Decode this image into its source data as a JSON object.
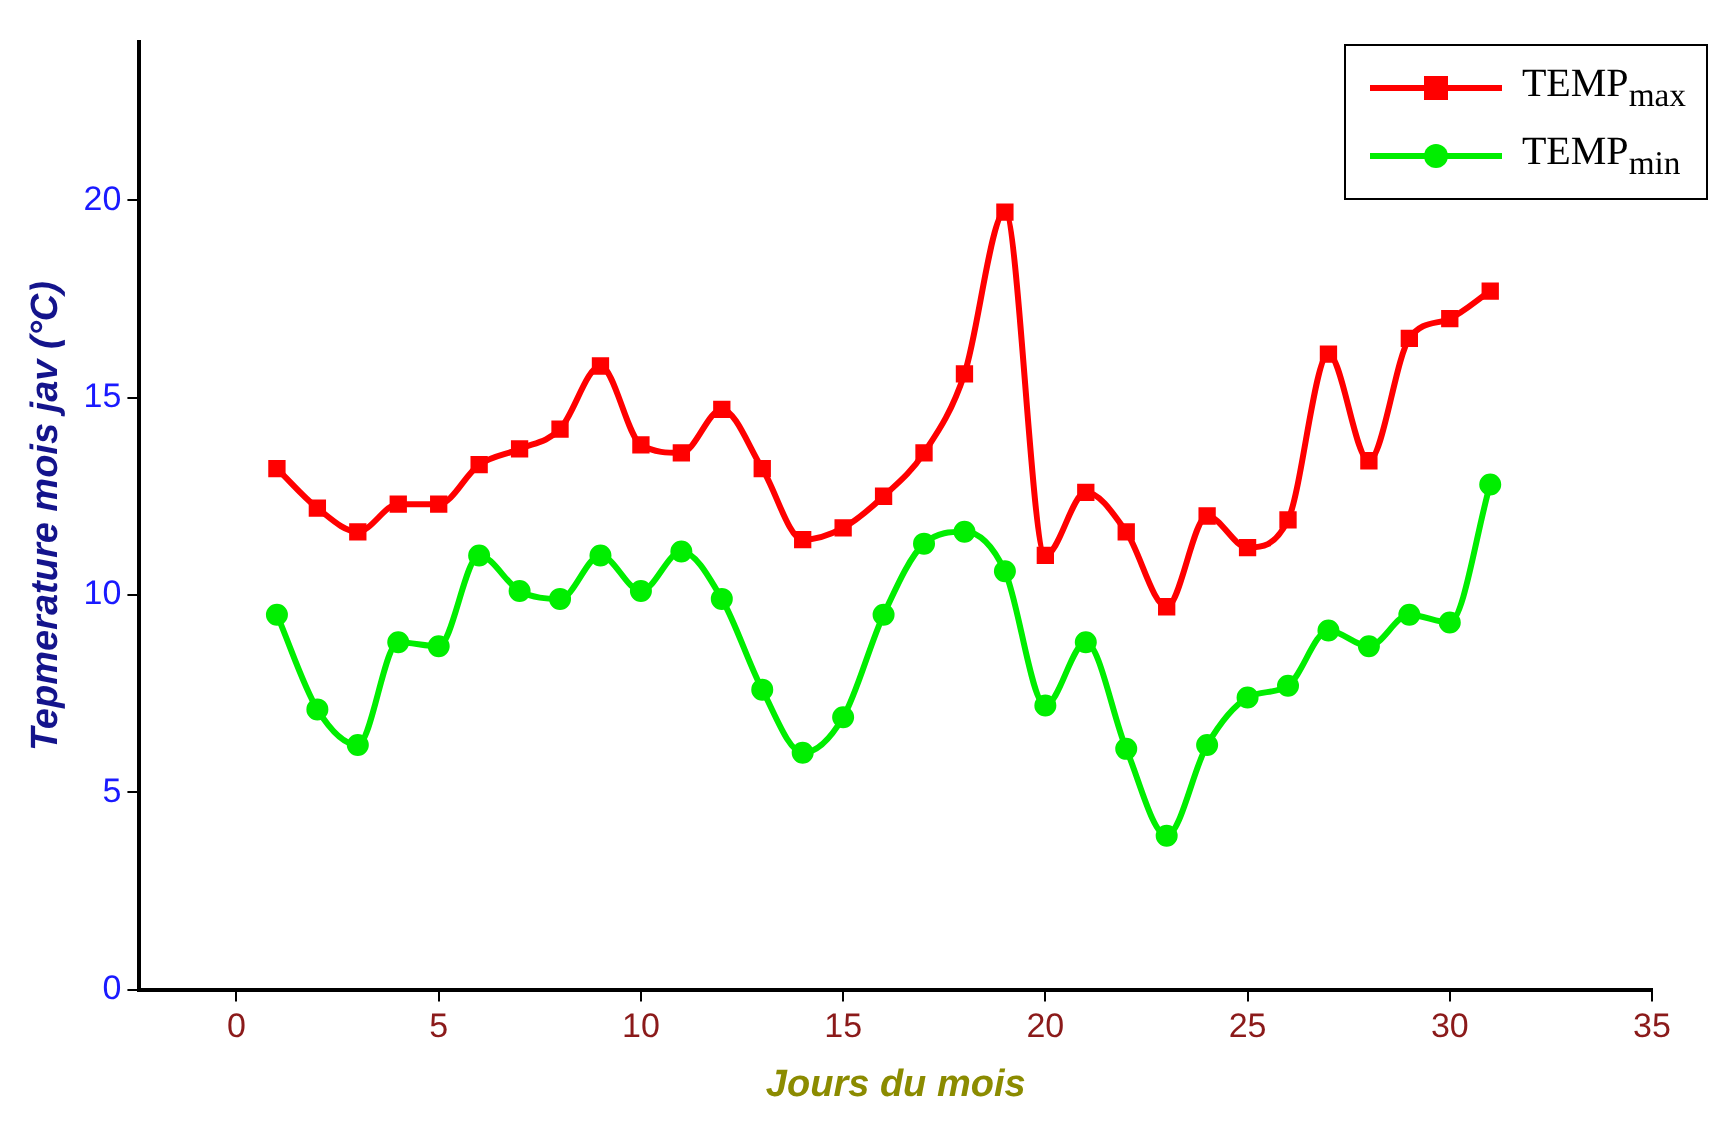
{
  "chart_data": {
    "type": "line",
    "xlabel": "Jours du mois",
    "ylabel": "Tepmerature mois jav (°C)",
    "x": [
      1,
      2,
      3,
      4,
      5,
      6,
      7,
      8,
      9,
      10,
      11,
      12,
      13,
      14,
      15,
      16,
      17,
      18,
      19,
      20,
      21,
      22,
      23,
      24,
      25,
      26,
      27,
      28,
      29,
      30,
      31
    ],
    "series": [
      {
        "name": "TEMP$_{max}$",
        "color": "#ff0000",
        "marker": "square",
        "values": [
          13.2,
          12.2,
          11.6,
          12.3,
          12.3,
          13.3,
          13.7,
          14.2,
          15.8,
          13.8,
          13.6,
          14.7,
          13.2,
          11.4,
          11.7,
          12.5,
          13.6,
          15.6,
          19.7,
          11.0,
          12.6,
          11.6,
          9.7,
          12.0,
          11.2,
          11.9,
          16.1,
          13.4,
          16.5,
          17.0,
          17.7
        ]
      },
      {
        "name": "TEMP$_{min}$",
        "color": "#00ee00",
        "marker": "circle",
        "values": [
          9.5,
          7.1,
          6.2,
          8.8,
          8.7,
          11.0,
          10.1,
          9.9,
          11.0,
          10.1,
          11.1,
          9.9,
          7.6,
          6.0,
          6.9,
          9.5,
          11.3,
          11.6,
          10.6,
          7.2,
          8.8,
          6.1,
          3.9,
          6.2,
          7.4,
          7.7,
          9.1,
          8.7,
          9.5,
          9.3,
          12.8
        ]
      }
    ],
    "xlim": [
      -2.4,
      35
    ],
    "xticks": [
      0,
      5,
      10,
      15,
      20,
      25,
      30,
      35
    ],
    "ylim": [
      0,
      24
    ],
    "yticks": [
      0,
      5,
      10,
      15,
      20
    ],
    "grid": false,
    "legend": "top right",
    "line_style": "solid"
  }
}
